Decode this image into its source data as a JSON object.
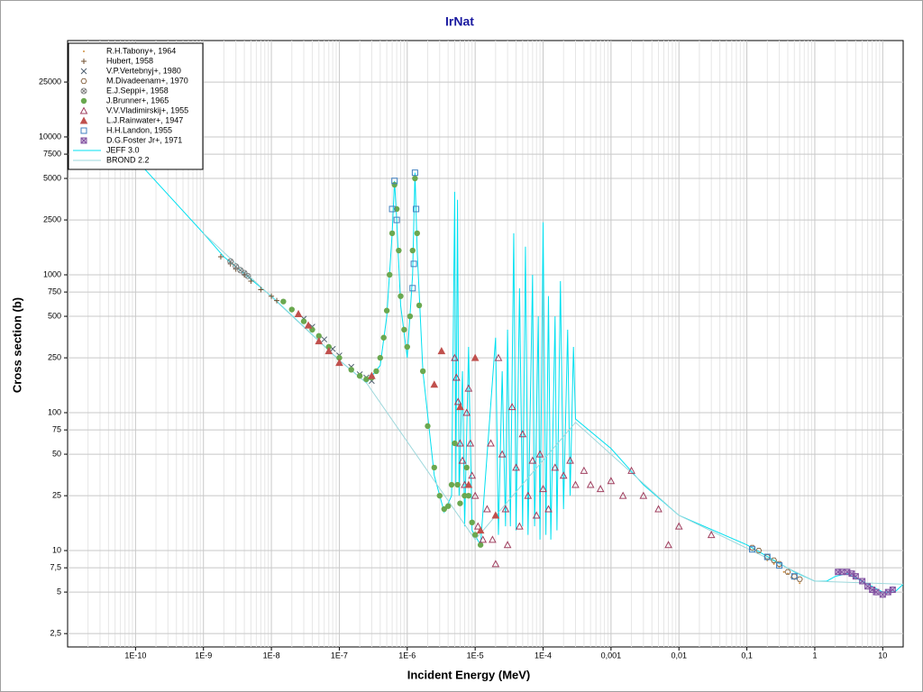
{
  "chart_data": {
    "type": "scatter",
    "title": "IrNat",
    "x_label": "Incident Energy (MeV)",
    "y_label": "Cross section (b)",
    "log_x": true,
    "log_y": true,
    "grid": true,
    "x_minor_grid": true,
    "legend": "top-left",
    "xlim": [
      1e-11,
      20
    ],
    "ylim": [
      2,
      50000
    ],
    "xticks": [
      {
        "value": 1e-10,
        "label": "1E-10"
      },
      {
        "value": 1e-09,
        "label": "1E-9"
      },
      {
        "value": 1e-08,
        "label": "1E-8"
      },
      {
        "value": 1e-07,
        "label": "1E-7"
      },
      {
        "value": 1e-06,
        "label": "1E-6"
      },
      {
        "value": 1e-05,
        "label": "1E-5"
      },
      {
        "value": 0.0001,
        "label": "1E-4"
      },
      {
        "value": 0.001,
        "label": "0,001"
      },
      {
        "value": 0.01,
        "label": "0,01"
      },
      {
        "value": 0.1,
        "label": "0,1"
      },
      1,
      10
    ],
    "yticks": [
      {
        "value": 2.5,
        "label": "2,5"
      },
      5,
      {
        "value": 7.5,
        "label": "7,5"
      },
      10,
      25,
      50,
      75,
      100,
      250,
      500,
      750,
      1000,
      2500,
      5000,
      7500,
      10000,
      25000
    ],
    "series": [
      {
        "name": "R.H.Tabony+, 1964",
        "marker": "dot",
        "color": "#d09040",
        "x": [
          0.2,
          0.25,
          0.3,
          0.35,
          0.4,
          0.45,
          0.5,
          0.6
        ],
        "values": [
          8.5,
          8,
          7.5,
          7,
          6.8,
          6.4,
          6.2,
          5.8
        ]
      },
      {
        "name": "Hubert, 1958",
        "marker": "plus",
        "color": "#705030",
        "x": [
          1.8e-09,
          2.5e-09,
          3e-09,
          4e-09,
          5e-09,
          7e-09,
          1e-08,
          1.2e-08
        ],
        "values": [
          1350,
          1200,
          1100,
          1000,
          900,
          780,
          700,
          650
        ]
      },
      {
        "name": "V.P.Vertebnyj+, 1980",
        "marker": "cross",
        "color": "#506070",
        "x": [
          3e-08,
          4e-08,
          6e-08,
          8e-08,
          1e-07,
          1.5e-07,
          2e-07,
          2.5e-07,
          3e-07
        ],
        "values": [
          480,
          420,
          340,
          290,
          260,
          215,
          190,
          180,
          170
        ]
      },
      {
        "name": "M.Divadeenam+, 1970",
        "marker": "hexagon",
        "color": "#907050",
        "x": [
          0.12,
          0.15,
          0.2,
          0.25,
          0.3,
          0.4,
          0.5,
          0.6
        ],
        "values": [
          10.5,
          10,
          9,
          8.5,
          8,
          7,
          6.5,
          6.2
        ]
      },
      {
        "name": "E.J.Seppi+, 1958",
        "marker": "circlex",
        "color": "#808080",
        "x": [
          2.5e-09,
          3e-09,
          3.5e-09,
          4e-09,
          4.5e-09
        ],
        "values": [
          1250,
          1150,
          1080,
          1030,
          980
        ]
      },
      {
        "name": "J.Brunner+, 1965",
        "marker": "disc",
        "color": "#6aa84f",
        "x": [
          1.5e-08,
          2e-08,
          3e-08,
          4e-08,
          5e-08,
          7e-08,
          1e-07,
          1.5e-07,
          2e-07,
          2.5e-07,
          3e-07,
          3.5e-07,
          4e-07,
          4.5e-07,
          5e-07,
          5.5e-07,
          6e-07,
          6.5e-07,
          7e-07,
          7.5e-07,
          8e-07,
          9e-07,
          1e-06,
          1.1e-06,
          1.2e-06,
          1.3e-06,
          1.4e-06,
          1.5e-06,
          1.7e-06,
          2e-06,
          2.5e-06,
          3e-06,
          3.5e-06,
          4e-06,
          4.5e-06,
          5e-06,
          5.5e-06,
          6e-06,
          7e-06,
          7.5e-06,
          8e-06,
          9e-06,
          1e-05,
          1.2e-05
        ],
        "values": [
          640,
          560,
          460,
          400,
          360,
          300,
          250,
          205,
          185,
          175,
          180,
          200,
          250,
          350,
          550,
          1000,
          2000,
          4500,
          3000,
          1500,
          700,
          400,
          300,
          500,
          1500,
          5000,
          2000,
          600,
          200,
          80,
          40,
          25,
          20,
          21,
          30,
          60,
          30,
          22,
          25,
          40,
          25,
          16,
          13,
          11
        ]
      },
      {
        "name": "V.V.Vladimirskij+, 1955",
        "marker": "triangle",
        "color": "#a04060",
        "x": [
          5e-06,
          5.3e-06,
          5.6e-06,
          6e-06,
          6.5e-06,
          7e-06,
          7.5e-06,
          8e-06,
          8.5e-06,
          9e-06,
          1e-05,
          1.1e-05,
          1.3e-05,
          1.5e-05,
          1.7e-05,
          1.8e-05,
          2e-05,
          2.2e-05,
          2.5e-05,
          2.8e-05,
          3e-05,
          3.5e-05,
          4e-05,
          4.5e-05,
          5e-05,
          6e-05,
          7e-05,
          8e-05,
          9e-05,
          0.0001,
          0.00012,
          0.00015,
          0.0002,
          0.00025,
          0.0003,
          0.0004,
          0.0005,
          0.0007,
          0.001,
          0.0015,
          0.002,
          0.003,
          0.005,
          0.007,
          0.01,
          0.03
        ],
        "values": [
          250,
          180,
          120,
          60,
          45,
          30,
          100,
          150,
          60,
          35,
          25,
          15,
          12,
          20,
          60,
          12,
          8,
          250,
          50,
          20,
          11,
          110,
          40,
          15,
          70,
          25,
          45,
          18,
          50,
          28,
          20,
          40,
          35,
          45,
          30,
          38,
          30,
          28,
          32,
          25,
          38,
          25,
          20,
          11,
          15,
          13
        ]
      },
      {
        "name": "L.J.Rainwater+, 1947",
        "marker": "ftriangle",
        "color": "#c0504d",
        "x": [
          2.5e-08,
          3.5e-08,
          5e-08,
          7e-08,
          1e-07,
          3e-07,
          2.5e-06,
          3.2e-06,
          6e-06,
          8e-06,
          1e-05,
          1.2e-05,
          2e-05
        ],
        "values": [
          520,
          430,
          330,
          280,
          230,
          185,
          160,
          280,
          110,
          30,
          250,
          14,
          18
        ]
      },
      {
        "name": "H.H.Landon, 1955",
        "marker": "square",
        "color": "#4080c0",
        "x": [
          6e-07,
          6.5e-07,
          7e-07,
          1.2e-06,
          1.25e-06,
          1.3e-06,
          1.35e-06,
          0.12,
          0.2,
          0.3,
          0.5
        ],
        "values": [
          3000,
          4800,
          2500,
          800,
          1200,
          5500,
          3000,
          10.2,
          9,
          7.8,
          6.5
        ]
      },
      {
        "name": "D.G.Foster Jr+, 1971",
        "marker": "squarex",
        "color": "#8050a0",
        "x": [
          2.2,
          2.5,
          3,
          3.5,
          4,
          5,
          6,
          7,
          8,
          10,
          12,
          14
        ],
        "values": [
          7,
          7,
          7,
          6.8,
          6.5,
          6,
          5.5,
          5.2,
          5,
          4.8,
          5,
          5.2
        ]
      },
      {
        "name": "JEFF 3.0",
        "marker": "line",
        "color": "#00e0f0",
        "x": [
          1.3e-10,
          1e-09,
          2e-09,
          1e-08,
          1e-07,
          2.5e-07,
          4e-07,
          5e-07,
          6e-07,
          6.5e-07,
          7e-07,
          8e-07,
          1e-06,
          1.2e-06,
          1.3e-06,
          1.4e-06,
          1.7e-06,
          2.5e-06,
          3.5e-06,
          4.5e-06,
          5e-06,
          5.2e-06,
          5.5e-06,
          5.8e-06,
          6.5e-06,
          7e-06,
          8e-06,
          9e-06,
          1.2e-05,
          2e-05,
          2.2e-05,
          2.5e-05,
          2.8e-05,
          3e-05,
          3.3e-05,
          3.7e-05,
          4e-05,
          4.5e-05,
          5e-05,
          5.5e-05,
          6e-05,
          7e-05,
          7.5e-05,
          8.5e-05,
          9e-05,
          0.0001,
          0.00011,
          0.00012,
          0.00013,
          0.00015,
          0.00016,
          0.00018,
          0.0002,
          0.00023,
          0.00025,
          0.00028,
          0.0003,
          0.001,
          0.003,
          0.01,
          0.1,
          0.5,
          1,
          1.5,
          2,
          3,
          5,
          10,
          15,
          20
        ],
        "values": [
          6000,
          2000,
          1350,
          700,
          240,
          165,
          220,
          500,
          2000,
          4800,
          2500,
          600,
          250,
          1000,
          5500,
          1500,
          200,
          35,
          19,
          25,
          4000,
          30,
          3500,
          25,
          200,
          15,
          300,
          14,
          11,
          350,
          13,
          200,
          15,
          400,
          15,
          2000,
          14,
          800,
          15,
          1600,
          13,
          1000,
          15,
          500,
          12,
          2400,
          13,
          700,
          12,
          500,
          14,
          900,
          20,
          400,
          25,
          300,
          90,
          55,
          30,
          18,
          11,
          7,
          6,
          6,
          6.5,
          6.8,
          6,
          5,
          5,
          5.7
        ]
      },
      {
        "name": "BROND 2.2",
        "marker": "line",
        "color": "#9ed8dc",
        "x": [
          1e-09,
          1e-07,
          2.5e-07,
          1e-05,
          0.0003,
          0.01,
          1,
          20
        ],
        "values": [
          2000,
          240,
          165,
          12,
          85,
          18,
          6,
          5.7
        ]
      }
    ]
  }
}
